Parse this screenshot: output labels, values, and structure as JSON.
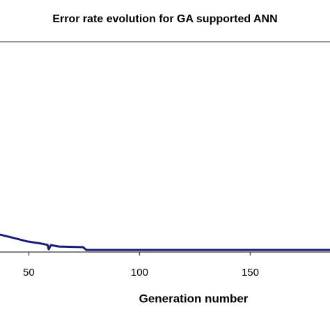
{
  "chart_data": {
    "type": "line",
    "title": "Error rate evolution for GA supported ANN",
    "x_label": "Generation number",
    "x": [
      37,
      43.5,
      49.5,
      55.7,
      58.5,
      59,
      60,
      63.5,
      74.5,
      76,
      186
    ],
    "series": [
      {
        "color": "#1a1a78",
        "values": [
          8.3,
          6.6,
          5,
          4,
          3.4,
          1.3,
          3.3,
          2.6,
          2.3,
          1,
          1
        ]
      }
    ],
    "xlim": [
      37,
      186
    ],
    "xticks": [
      50,
      100,
      150
    ],
    "ylim": [
      0,
      100
    ]
  }
}
